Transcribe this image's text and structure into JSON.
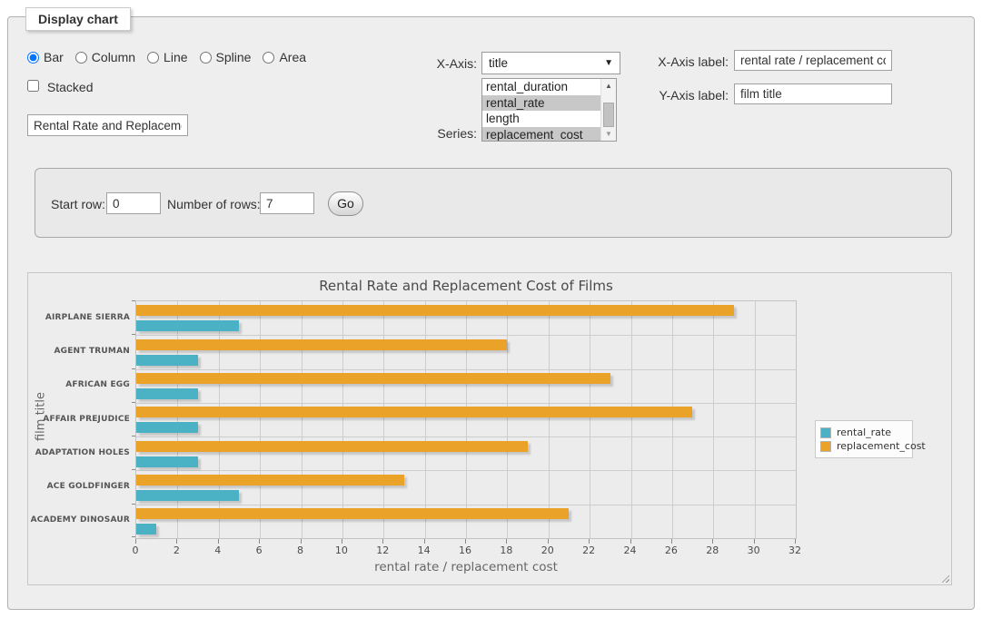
{
  "app": {
    "fieldset_legend": "Display chart"
  },
  "controls": {
    "chart_types": [
      {
        "label": "Bar",
        "selected": true
      },
      {
        "label": "Column",
        "selected": false
      },
      {
        "label": "Line",
        "selected": false
      },
      {
        "label": "Spline",
        "selected": false
      },
      {
        "label": "Area",
        "selected": false
      }
    ],
    "stacked": {
      "label": "Stacked",
      "checked": false
    },
    "title_input_value": "Rental Rate and Replacement Cost of Films",
    "x_axis": {
      "label": "X-Axis:",
      "selected_value": "title"
    },
    "series": {
      "label": "Series:",
      "options": [
        {
          "label": "rental_duration",
          "selected": false
        },
        {
          "label": "rental_rate",
          "selected": true
        },
        {
          "label": "length",
          "selected": false
        },
        {
          "label": "replacement_cost",
          "selected": true
        }
      ]
    },
    "x_axis_label": {
      "label": "X-Axis label:",
      "value": "rental rate / replacement cost"
    },
    "y_axis_label": {
      "label": "Y-Axis label:",
      "value": "film title"
    }
  },
  "row_controls": {
    "start_row_label": "Start row:",
    "start_row_value": "0",
    "num_rows_label": "Number of rows:",
    "num_rows_value": "7",
    "go_label": "Go"
  },
  "chart_data": {
    "type": "bar",
    "orientation": "horizontal",
    "title": "Rental Rate and Replacement Cost of Films",
    "xlabel": "rental rate / replacement cost",
    "ylabel": "film title",
    "categories": [
      "AIRPLANE SIERRA",
      "AGENT TRUMAN",
      "AFRICAN EGG",
      "AFFAIR PREJUDICE",
      "ADAPTATION HOLES",
      "ACE GOLDFINGER",
      "ACADEMY DINOSAUR"
    ],
    "series": [
      {
        "name": "rental_rate",
        "color": "#4bb2c5",
        "values": [
          4.99,
          2.99,
          2.99,
          2.99,
          2.99,
          4.99,
          0.99
        ]
      },
      {
        "name": "replacement_cost",
        "color": "#eaa228",
        "values": [
          28.99,
          17.99,
          22.99,
          26.99,
          18.99,
          12.99,
          20.99
        ]
      }
    ],
    "group_draw_order": [
      "replacement_cost",
      "rental_rate"
    ],
    "xlim": [
      0,
      32
    ],
    "xticks": [
      0,
      2,
      4,
      6,
      8,
      10,
      12,
      14,
      16,
      18,
      20,
      22,
      24,
      26,
      28,
      30,
      32
    ],
    "grid": true,
    "legend_position": "right"
  },
  "colors": {
    "rental_rate": "#4bb2c5",
    "replacement_cost": "#eaa228",
    "panel_bg": "#eeeeee",
    "gridline": "#cdcdcd"
  }
}
